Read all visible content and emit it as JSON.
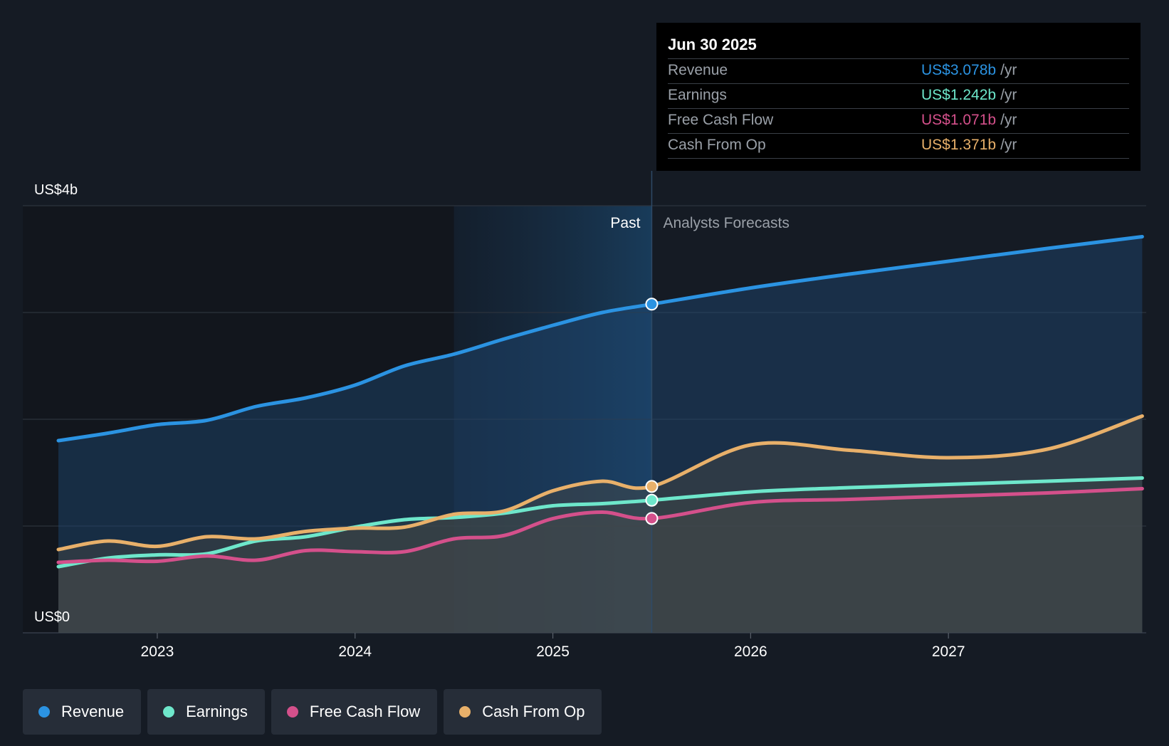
{
  "chart_data": {
    "type": "area",
    "y_axis": {
      "min": 0,
      "max": 4,
      "unit": "US$ b",
      "top_label": "US$4b",
      "bottom_label": "US$0"
    },
    "x_ticks": [
      "2023",
      "2024",
      "2025",
      "2026",
      "2027"
    ],
    "divider_date": 2025.5,
    "highlight_start": 2024.5,
    "regions": {
      "past": "Past",
      "forecast": "Analysts Forecasts"
    },
    "grid": true,
    "series": [
      {
        "key": "revenue",
        "name": "Revenue",
        "color": "#2b93e2",
        "points": [
          [
            2022.5,
            1.8
          ],
          [
            2022.75,
            1.87
          ],
          [
            2023.0,
            1.95
          ],
          [
            2023.25,
            1.99
          ],
          [
            2023.5,
            2.12
          ],
          [
            2023.75,
            2.2
          ],
          [
            2024.0,
            2.32
          ],
          [
            2024.25,
            2.5
          ],
          [
            2024.5,
            2.61
          ],
          [
            2024.75,
            2.75
          ],
          [
            2025.0,
            2.88
          ],
          [
            2025.25,
            3.0
          ],
          [
            2025.5,
            3.078
          ],
          [
            2026.0,
            3.23
          ],
          [
            2026.5,
            3.36
          ],
          [
            2027.0,
            3.48
          ],
          [
            2027.5,
            3.6
          ],
          [
            2027.98,
            3.71
          ]
        ]
      },
      {
        "key": "earnings",
        "name": "Earnings",
        "color": "#6ee7cb",
        "points": [
          [
            2022.5,
            0.62
          ],
          [
            2022.75,
            0.7
          ],
          [
            2023.0,
            0.73
          ],
          [
            2023.25,
            0.74
          ],
          [
            2023.5,
            0.86
          ],
          [
            2023.75,
            0.9
          ],
          [
            2024.0,
            0.99
          ],
          [
            2024.25,
            1.06
          ],
          [
            2024.5,
            1.08
          ],
          [
            2024.75,
            1.12
          ],
          [
            2025.0,
            1.19
          ],
          [
            2025.25,
            1.21
          ],
          [
            2025.5,
            1.242
          ],
          [
            2026.0,
            1.32
          ],
          [
            2026.5,
            1.36
          ],
          [
            2027.0,
            1.39
          ],
          [
            2027.5,
            1.42
          ],
          [
            2027.98,
            1.45
          ]
        ]
      },
      {
        "key": "fcf",
        "name": "Free Cash Flow",
        "color": "#d4508b",
        "points": [
          [
            2022.5,
            0.66
          ],
          [
            2022.75,
            0.68
          ],
          [
            2023.0,
            0.67
          ],
          [
            2023.25,
            0.72
          ],
          [
            2023.5,
            0.68
          ],
          [
            2023.75,
            0.77
          ],
          [
            2024.0,
            0.76
          ],
          [
            2024.25,
            0.76
          ],
          [
            2024.5,
            0.88
          ],
          [
            2024.75,
            0.91
          ],
          [
            2025.0,
            1.07
          ],
          [
            2025.25,
            1.13
          ],
          [
            2025.5,
            1.071
          ],
          [
            2026.0,
            1.22
          ],
          [
            2026.5,
            1.25
          ],
          [
            2027.0,
            1.28
          ],
          [
            2027.5,
            1.31
          ],
          [
            2027.98,
            1.35
          ]
        ]
      },
      {
        "key": "cfo",
        "name": "Cash From Op",
        "color": "#e8b06a",
        "points": [
          [
            2022.5,
            0.78
          ],
          [
            2022.75,
            0.86
          ],
          [
            2023.0,
            0.81
          ],
          [
            2023.25,
            0.9
          ],
          [
            2023.5,
            0.88
          ],
          [
            2023.75,
            0.95
          ],
          [
            2024.0,
            0.98
          ],
          [
            2024.25,
            0.99
          ],
          [
            2024.5,
            1.11
          ],
          [
            2024.75,
            1.14
          ],
          [
            2025.0,
            1.33
          ],
          [
            2025.25,
            1.42
          ],
          [
            2025.5,
            1.371
          ],
          [
            2026.0,
            1.76
          ],
          [
            2026.5,
            1.71
          ],
          [
            2027.0,
            1.64
          ],
          [
            2027.5,
            1.72
          ],
          [
            2027.98,
            2.03
          ]
        ]
      }
    ]
  },
  "tooltip": {
    "date": "Jun 30 2025",
    "unit": "/yr",
    "rows": [
      {
        "name": "Revenue",
        "value": "US$3.078b"
      },
      {
        "name": "Earnings",
        "value": "US$1.242b"
      },
      {
        "name": "Free Cash Flow",
        "value": "US$1.071b"
      },
      {
        "name": "Cash From Op",
        "value": "US$1.371b"
      }
    ]
  },
  "legend": [
    {
      "label": "Revenue",
      "color": "#2b93e2"
    },
    {
      "label": "Earnings",
      "color": "#6ee7cb"
    },
    {
      "label": "Free Cash Flow",
      "color": "#d4508b"
    },
    {
      "label": "Cash From Op",
      "color": "#e8b06a"
    }
  ]
}
